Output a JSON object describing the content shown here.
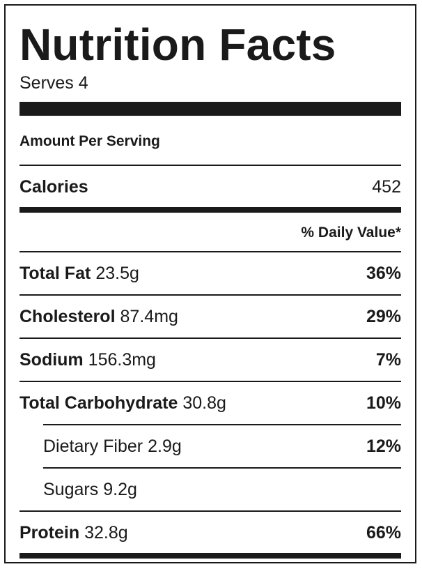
{
  "label": {
    "title": "Nutrition Facts",
    "serves": "Serves 4",
    "amount_per_serving": "Amount Per Serving",
    "calories": {
      "name": "Calories",
      "value": "452"
    },
    "daily_value_header": "% Daily Value*",
    "nutrients": [
      {
        "name": "Total Fat",
        "amount": "23.5g",
        "dv": "36%"
      },
      {
        "name": "Cholesterol",
        "amount": "87.4mg",
        "dv": "29%"
      },
      {
        "name": "Sodium",
        "amount": "156.3mg",
        "dv": "7%"
      },
      {
        "name": "Total Carbohydrate",
        "amount": "30.8g",
        "dv": "10%"
      },
      {
        "name": "Dietary Fiber",
        "amount": "2.9g",
        "dv": "12%"
      },
      {
        "name": "Sugars",
        "amount": "9.2g",
        "dv": ""
      },
      {
        "name": "Protein",
        "amount": "32.8g",
        "dv": "66%"
      }
    ]
  },
  "colors": {
    "ink": "#1a1a1a",
    "background": "#ffffff"
  }
}
